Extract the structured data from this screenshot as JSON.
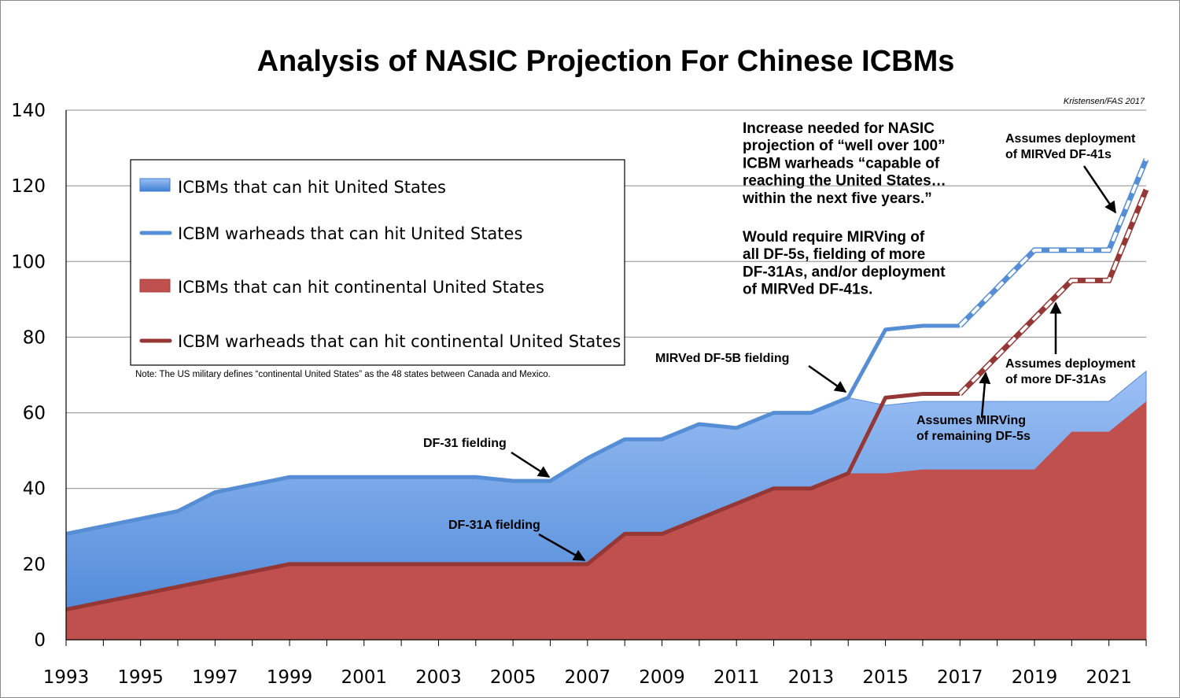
{
  "chart_data": {
    "type": "area",
    "title": "Analysis of NASIC Projection For Chinese ICBMs",
    "credit": "Kristensen/FAS 2017",
    "ylim": [
      0,
      140
    ],
    "xlim": [
      1993,
      2022
    ],
    "yticks": [
      0,
      20,
      40,
      60,
      80,
      100,
      120,
      140
    ],
    "xticks": [
      1993,
      1995,
      1997,
      1999,
      2001,
      2003,
      2005,
      2007,
      2009,
      2011,
      2013,
      2015,
      2017,
      2019,
      2021
    ],
    "grid": true,
    "x": [
      1993,
      1994,
      1995,
      1996,
      1997,
      1998,
      1999,
      2000,
      2001,
      2002,
      2003,
      2004,
      2005,
      2006,
      2007,
      2008,
      2009,
      2010,
      2011,
      2012,
      2013,
      2014,
      2015,
      2016,
      2017,
      2018,
      2019,
      2020,
      2021,
      2022
    ],
    "series": [
      {
        "name": "ICBMs that can hit United States",
        "kind": "area",
        "color": "#6d9fe6",
        "values": [
          28,
          30,
          32,
          34,
          39,
          41,
          43,
          43,
          43,
          43,
          43,
          43,
          42,
          42,
          48,
          53,
          53,
          57,
          56,
          60,
          60,
          64,
          62,
          63,
          63,
          63,
          63,
          63,
          63,
          71
        ]
      },
      {
        "name": "ICBMs that can hit continental United States",
        "kind": "area",
        "color": "#c0504d",
        "values": [
          8,
          10,
          12,
          14,
          16,
          18,
          20,
          20,
          20,
          20,
          20,
          20,
          20,
          20,
          20,
          28,
          28,
          32,
          36,
          40,
          40,
          44,
          44,
          45,
          45,
          45,
          45,
          55,
          55,
          63
        ]
      },
      {
        "name": "ICBM warheads that can hit United States",
        "kind": "line",
        "color": "#558ed5",
        "values": [
          28,
          30,
          32,
          34,
          39,
          41,
          43,
          43,
          43,
          43,
          43,
          43,
          42,
          42,
          48,
          53,
          53,
          57,
          56,
          60,
          60,
          64,
          82,
          83,
          83,
          93,
          103,
          103,
          103,
          127
        ],
        "projected_from": 2017
      },
      {
        "name": "ICBM warheads that can hit continental United States",
        "kind": "line",
        "color": "#953735",
        "values": [
          8,
          10,
          12,
          14,
          16,
          18,
          20,
          20,
          20,
          20,
          20,
          20,
          20,
          20,
          20,
          28,
          28,
          32,
          36,
          40,
          40,
          44,
          64,
          65,
          65,
          75,
          85,
          95,
          95,
          119
        ],
        "projected_from": 2017
      }
    ],
    "legend": {
      "placement": "upper-left",
      "items": [
        "ICBMs that can hit United States",
        "ICBM warheads that can hit United States",
        "ICBMs that can hit continental United States",
        "ICBM warheads that can hit continental United States"
      ],
      "note": "Note: The US military defines “continental United States” as the 48 states between Canada and Mexico."
    },
    "annotations": [
      {
        "id": "df31",
        "text": [
          "DF-31 fielding"
        ]
      },
      {
        "id": "df31a",
        "text": [
          "DF-31A fielding"
        ]
      },
      {
        "id": "df5b",
        "text": [
          "MIRVed DF-5B fielding"
        ]
      },
      {
        "id": "mirv-df5",
        "text": [
          "Assumes MIRVing",
          "of remaining DF-5s"
        ]
      },
      {
        "id": "more-df31a",
        "text": [
          "Assumes deployment",
          "of more DF-31As"
        ]
      },
      {
        "id": "df41",
        "text": [
          "Assumes deployment",
          "of MIRVed DF-41s"
        ]
      },
      {
        "id": "increase",
        "text": [
          "Increase needed for NASIC",
          "projection of “well over 100”",
          "ICBM warheads “capable of",
          "reaching the United States…",
          "within the next five years.”"
        ]
      },
      {
        "id": "require",
        "text": [
          "Would require MIRVing of",
          "all DF-5s, fielding of more",
          "DF-31As, and/or deployment",
          "of MIRVed DF-41s."
        ]
      }
    ]
  }
}
